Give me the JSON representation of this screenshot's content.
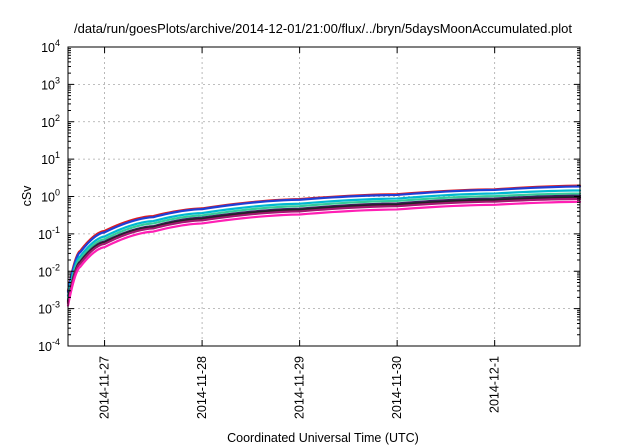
{
  "chart_data": {
    "type": "line",
    "title": "/data/run/goesPlots/archive/2014-12-01/21:00/flux/../bryn/5daysMoonAccumulated.plot",
    "xlabel": "Coordinated Universal Time (UTC)",
    "ylabel": "cSv",
    "x_scale": "time",
    "y_scale": "log",
    "xlim": [
      "2014-11-26 15:00",
      "2014-12-01 21:00"
    ],
    "ylim": [
      0.0001,
      10000
    ],
    "grid": true,
    "x_ticks": [
      "2014-11-27",
      "2014-11-28",
      "2014-11-29",
      "2014-11-30",
      "2014-12-1"
    ],
    "y_ticks": [
      {
        "base": "10",
        "exp": "-4"
      },
      {
        "base": "10",
        "exp": "-3"
      },
      {
        "base": "10",
        "exp": "-2"
      },
      {
        "base": "10",
        "exp": "-1"
      },
      {
        "base": "10",
        "exp": "0"
      },
      {
        "base": "10",
        "exp": "1"
      },
      {
        "base": "10",
        "exp": "2"
      },
      {
        "base": "10",
        "exp": "3"
      },
      {
        "base": "10",
        "exp": "4"
      }
    ],
    "x": [
      "2014-11-26 15:00",
      "2014-11-26 18:00",
      "2014-11-27 00:00",
      "2014-11-27 12:00",
      "2014-11-28 00:00",
      "2014-11-29 00:00",
      "2014-11-30 00:00",
      "2014-12-01 00:00",
      "2014-12-01 21:00"
    ],
    "series": [
      {
        "color": "#e41a1c",
        "values": [
          0.003,
          0.035,
          0.12,
          0.3,
          0.48,
          0.85,
          1.15,
          1.55,
          1.95
        ]
      },
      {
        "color": "#1f3fd6",
        "values": [
          0.0028,
          0.032,
          0.11,
          0.28,
          0.46,
          0.82,
          1.1,
          1.5,
          1.85
        ]
      },
      {
        "color": "#00b7d0",
        "values": [
          0.0022,
          0.025,
          0.085,
          0.22,
          0.36,
          0.64,
          0.88,
          1.2,
          1.45
        ]
      },
      {
        "color": "#33cc99",
        "values": [
          0.0018,
          0.021,
          0.072,
          0.19,
          0.31,
          0.55,
          0.76,
          1.02,
          1.2
        ]
      },
      {
        "color": "#3a1f5d",
        "values": [
          0.0016,
          0.018,
          0.062,
          0.16,
          0.27,
          0.47,
          0.65,
          0.88,
          1.05
        ]
      },
      {
        "color": "#222222",
        "values": [
          0.0015,
          0.017,
          0.058,
          0.15,
          0.25,
          0.44,
          0.6,
          0.8,
          0.95
        ]
      },
      {
        "color": "#a0176f",
        "values": [
          0.0014,
          0.016,
          0.054,
          0.14,
          0.23,
          0.4,
          0.55,
          0.73,
          0.86
        ]
      },
      {
        "color": "#ff1fb4",
        "values": [
          0.0012,
          0.013,
          0.044,
          0.115,
          0.19,
          0.33,
          0.45,
          0.6,
          0.72
        ]
      }
    ]
  }
}
